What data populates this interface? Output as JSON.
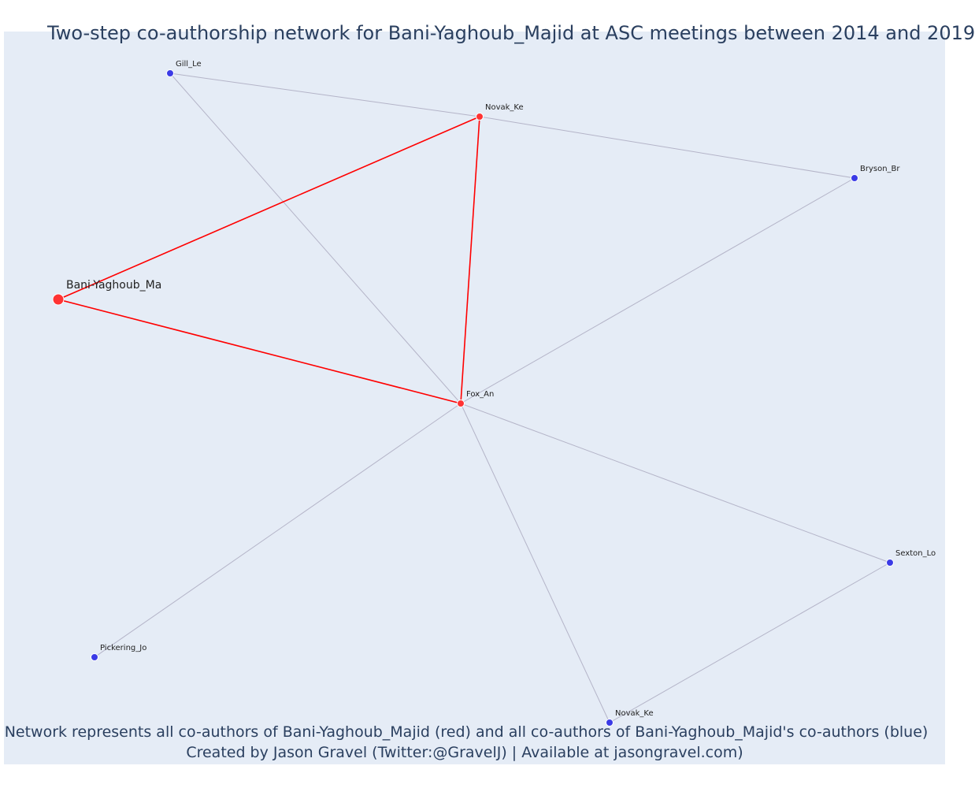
{
  "title": "Two-step co-authorship network for Bani-Yaghoub_Majid at ASC meetings between 2014 and 2019",
  "footer": {
    "line1": "Network represents all co-authors of Bani-Yaghoub_Majid (red) and all co-authors of Bani-Yaghoub_Majid's co-authors (blue)",
    "line2": "Created by Jason Gravel (Twitter:@GravelJ) | Available at jasongravel.com)"
  },
  "colors": {
    "plot_bg": "#e5ecf6",
    "red_node": "#ff3333",
    "blue_node": "#3b3be6",
    "red_edge": "#ff0000",
    "grey_edge": "#b4b4c8",
    "text": "#2a3f5f"
  },
  "nodes": [
    {
      "id": "bani",
      "label": "Bani-Yaghoub_Ma",
      "group": "focal"
    },
    {
      "id": "novak1",
      "label": "Novak_Ke",
      "group": "red"
    },
    {
      "id": "fox",
      "label": "Fox_An",
      "group": "red"
    },
    {
      "id": "gill",
      "label": "Gill_Le",
      "group": "blue"
    },
    {
      "id": "bryson",
      "label": "Bryson_Br",
      "group": "blue"
    },
    {
      "id": "sexton",
      "label": "Sexton_Lo",
      "group": "blue"
    },
    {
      "id": "novak2",
      "label": "Novak_Ke",
      "group": "blue"
    },
    {
      "id": "pickering",
      "label": "Pickering_Jo",
      "group": "blue"
    }
  ],
  "edges": [
    {
      "source": "bani",
      "target": "novak1",
      "type": "red"
    },
    {
      "source": "bani",
      "target": "fox",
      "type": "red"
    },
    {
      "source": "novak1",
      "target": "fox",
      "type": "red"
    },
    {
      "source": "gill",
      "target": "novak1",
      "type": "grey"
    },
    {
      "source": "novak1",
      "target": "bryson",
      "type": "grey"
    },
    {
      "source": "gill",
      "target": "fox",
      "type": "grey"
    },
    {
      "source": "bryson",
      "target": "fox",
      "type": "grey"
    },
    {
      "source": "fox",
      "target": "sexton",
      "type": "grey"
    },
    {
      "source": "fox",
      "target": "novak2",
      "type": "grey"
    },
    {
      "source": "fox",
      "target": "pickering",
      "type": "grey"
    },
    {
      "source": "sexton",
      "target": "novak2",
      "type": "grey"
    }
  ]
}
